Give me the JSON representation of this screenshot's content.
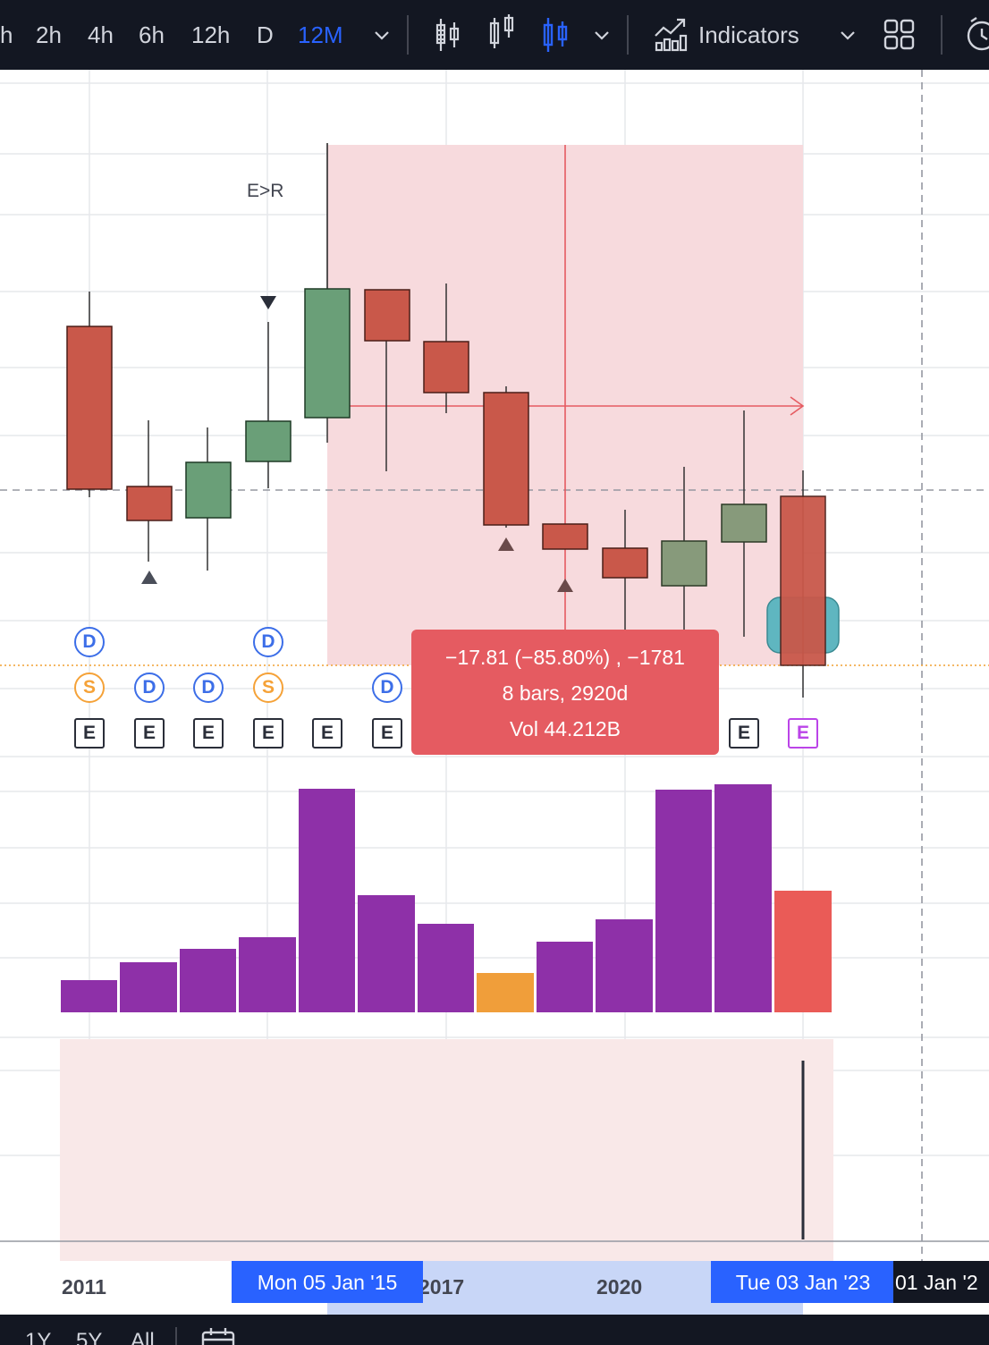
{
  "toolbar": {
    "intervals": [
      "h",
      "2h",
      "4h",
      "6h",
      "12h",
      "D",
      "12M"
    ],
    "active_interval": "12M",
    "indicators_label": "Indicators"
  },
  "chart": {
    "annotation": "E>R",
    "events": {
      "row1": [
        "D",
        "",
        "",
        "D",
        "",
        "",
        "",
        "",
        "",
        "",
        "",
        "",
        ""
      ],
      "row2": [
        "S",
        "D",
        "D",
        "S",
        "",
        "D",
        "",
        "",
        "",
        "",
        "",
        "",
        ""
      ],
      "row3": [
        "E",
        "E",
        "E",
        "E",
        "E",
        "E",
        "",
        "",
        "",
        "",
        "",
        "E",
        "E"
      ]
    },
    "colors": {
      "up": "#6a9f78",
      "down": "#c9584a",
      "volume": "#8e30a8",
      "volume_highlight": "#f09e3a",
      "volume_last": "#ea5b57",
      "range_fill": "#f7dadd"
    }
  },
  "measure": {
    "line1": "−17.81 (−85.80%) , −1781",
    "line2": "8 bars, 2920d",
    "line3": "Vol 44.212B"
  },
  "time_axis": {
    "labels": [
      "2011",
      "2017",
      "2020"
    ],
    "range_start": "Mon 05 Jan '15",
    "range_end": "Tue 03 Jan '23",
    "crosshair": "01 Jan '2"
  },
  "bottombar": {
    "items": [
      "1Y",
      "5Y",
      "All"
    ]
  }
}
